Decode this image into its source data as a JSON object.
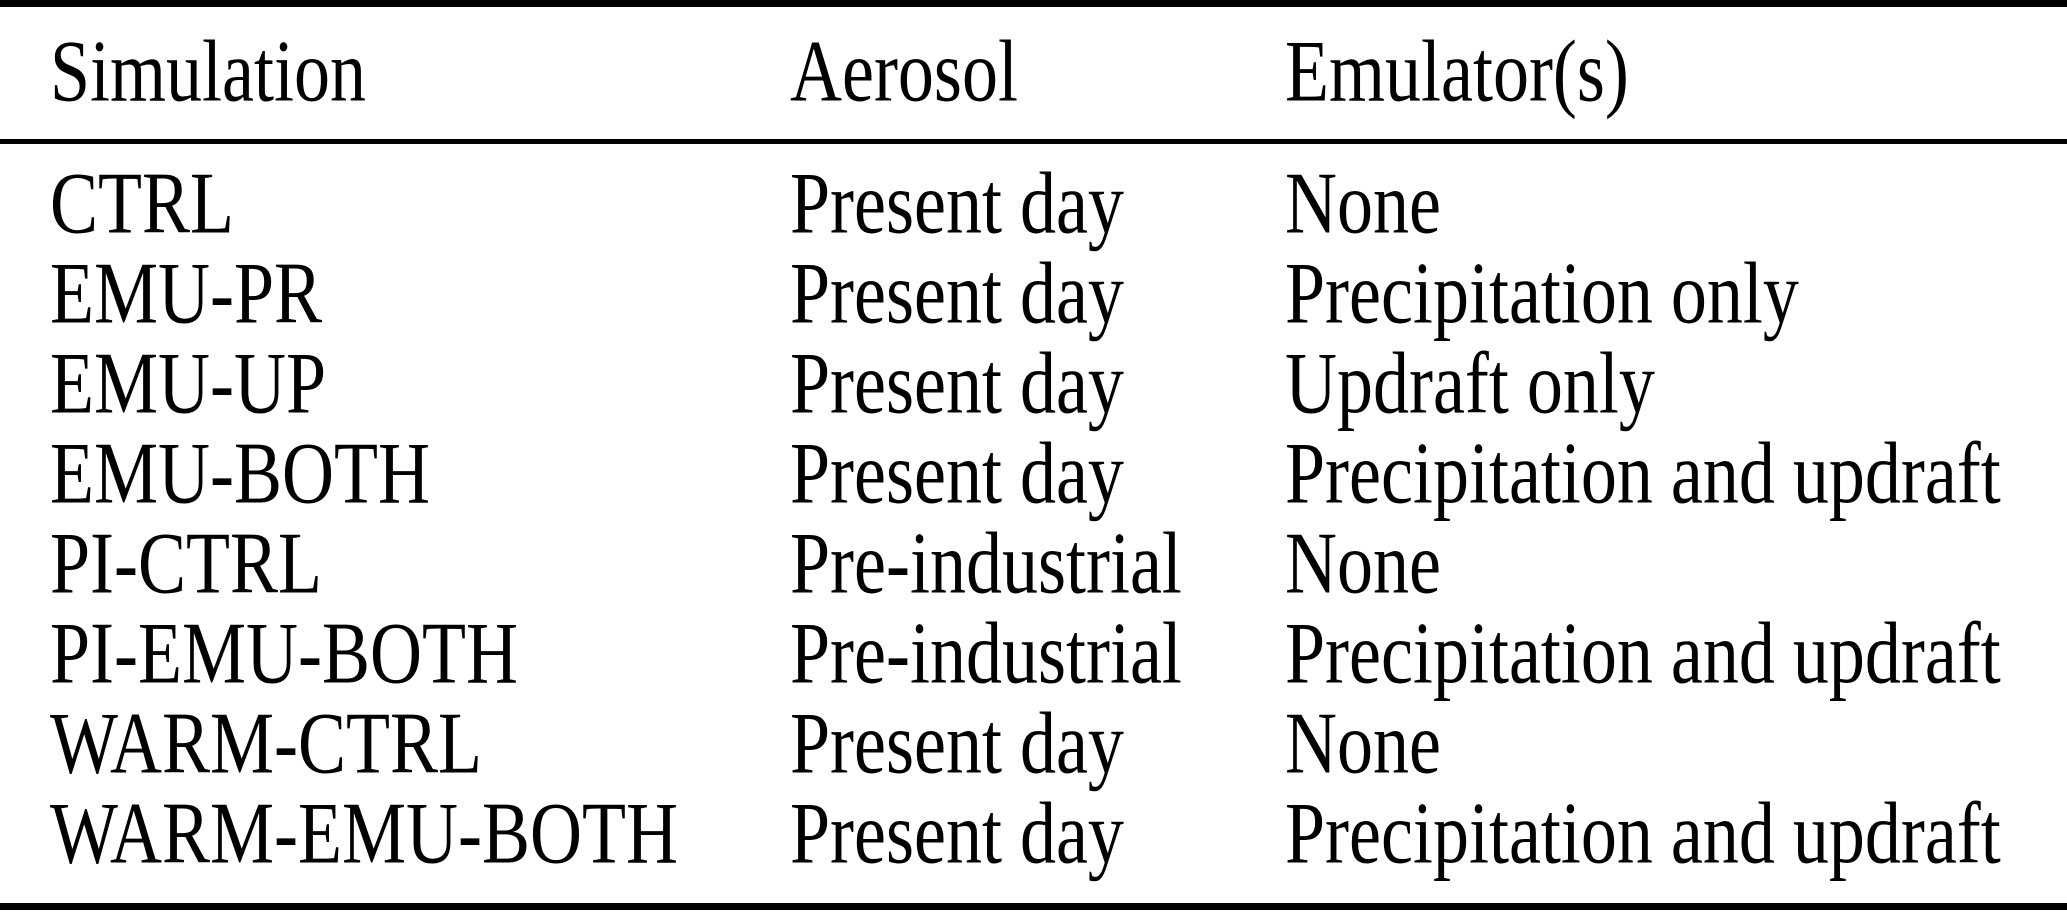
{
  "page": {
    "background_color": "#ffffff",
    "text_color": "#000000",
    "rule_color": "#000000"
  },
  "table": {
    "columns": [
      "Simulation",
      "Aerosol",
      "Emulator(s)"
    ],
    "rows": [
      {
        "simulation": "CTRL",
        "aerosol": "Present day",
        "emulators": "None"
      },
      {
        "simulation": "EMU-PR",
        "aerosol": "Present day",
        "emulators": "Precipitation only"
      },
      {
        "simulation": "EMU-UP",
        "aerosol": "Present day",
        "emulators": "Updraft only"
      },
      {
        "simulation": "EMU-BOTH",
        "aerosol": "Present day",
        "emulators": "Precipitation and updraft"
      },
      {
        "simulation": "PI-CTRL",
        "aerosol": "Pre-industrial",
        "emulators": "None"
      },
      {
        "simulation": "PI-EMU-BOTH",
        "aerosol": "Pre-industrial",
        "emulators": "Precipitation and updraft"
      },
      {
        "simulation": "WARM-CTRL",
        "aerosol": "Present day",
        "emulators": "None"
      },
      {
        "simulation": "WARM-EMU-BOTH",
        "aerosol": "Present day",
        "emulators": "Precipitation and updraft"
      }
    ]
  }
}
